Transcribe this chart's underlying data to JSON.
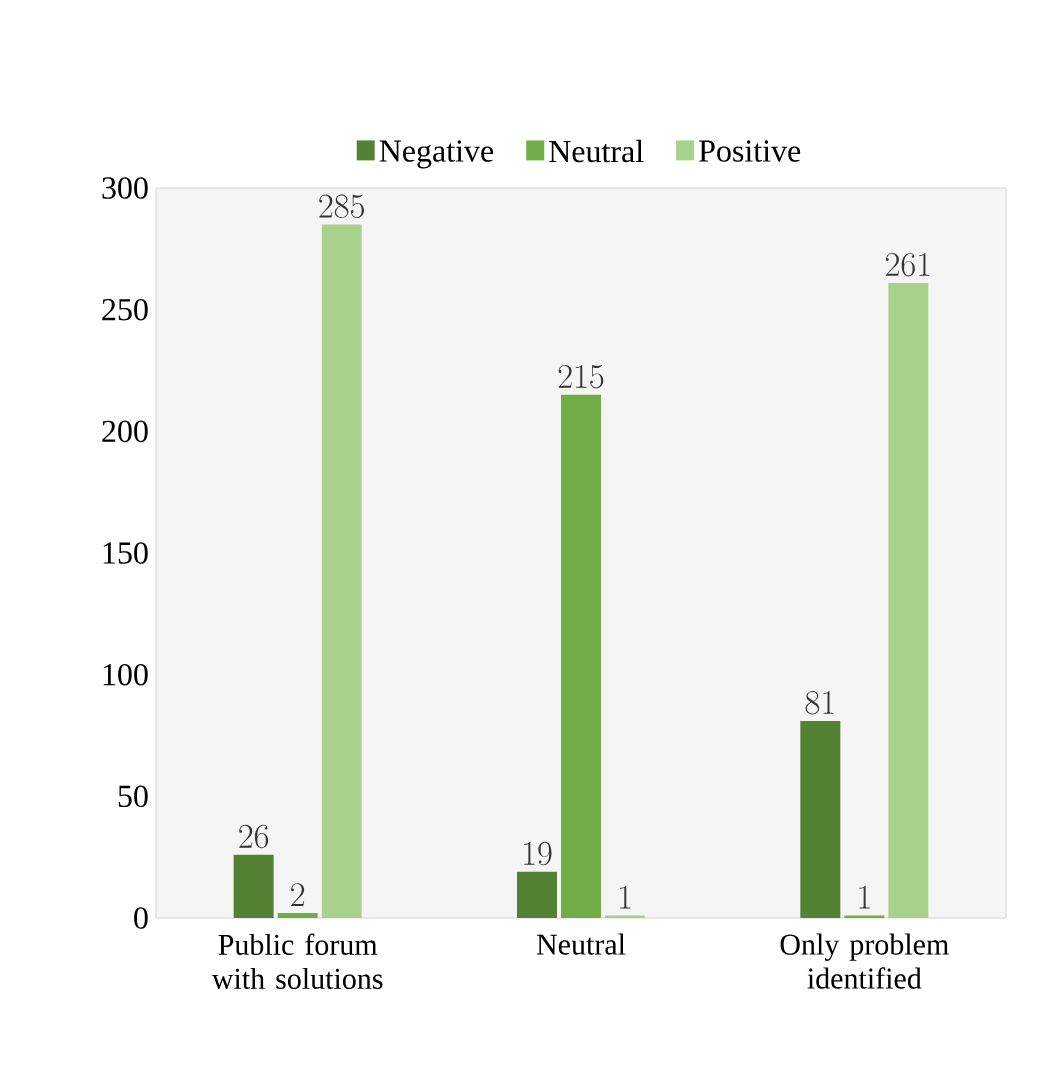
{
  "chart_data": {
    "type": "bar",
    "categories": [
      "Public forum\nwith solutions",
      "Neutral",
      "Only problem\nidentified"
    ],
    "series": [
      {
        "name": "Negative",
        "color": "#548235",
        "values": [
          26,
          19,
          81
        ]
      },
      {
        "name": "Neutral",
        "color": "#70ad47",
        "values": [
          2,
          215,
          1
        ]
      },
      {
        "name": "Positive",
        "color": "#a9d18e",
        "values": [
          285,
          1,
          261
        ]
      }
    ],
    "ylim": [
      0,
      300
    ],
    "yticks": [
      0,
      50,
      100,
      150,
      200,
      250,
      300
    ],
    "data_labels": true,
    "legend": "top",
    "grid": false
  }
}
